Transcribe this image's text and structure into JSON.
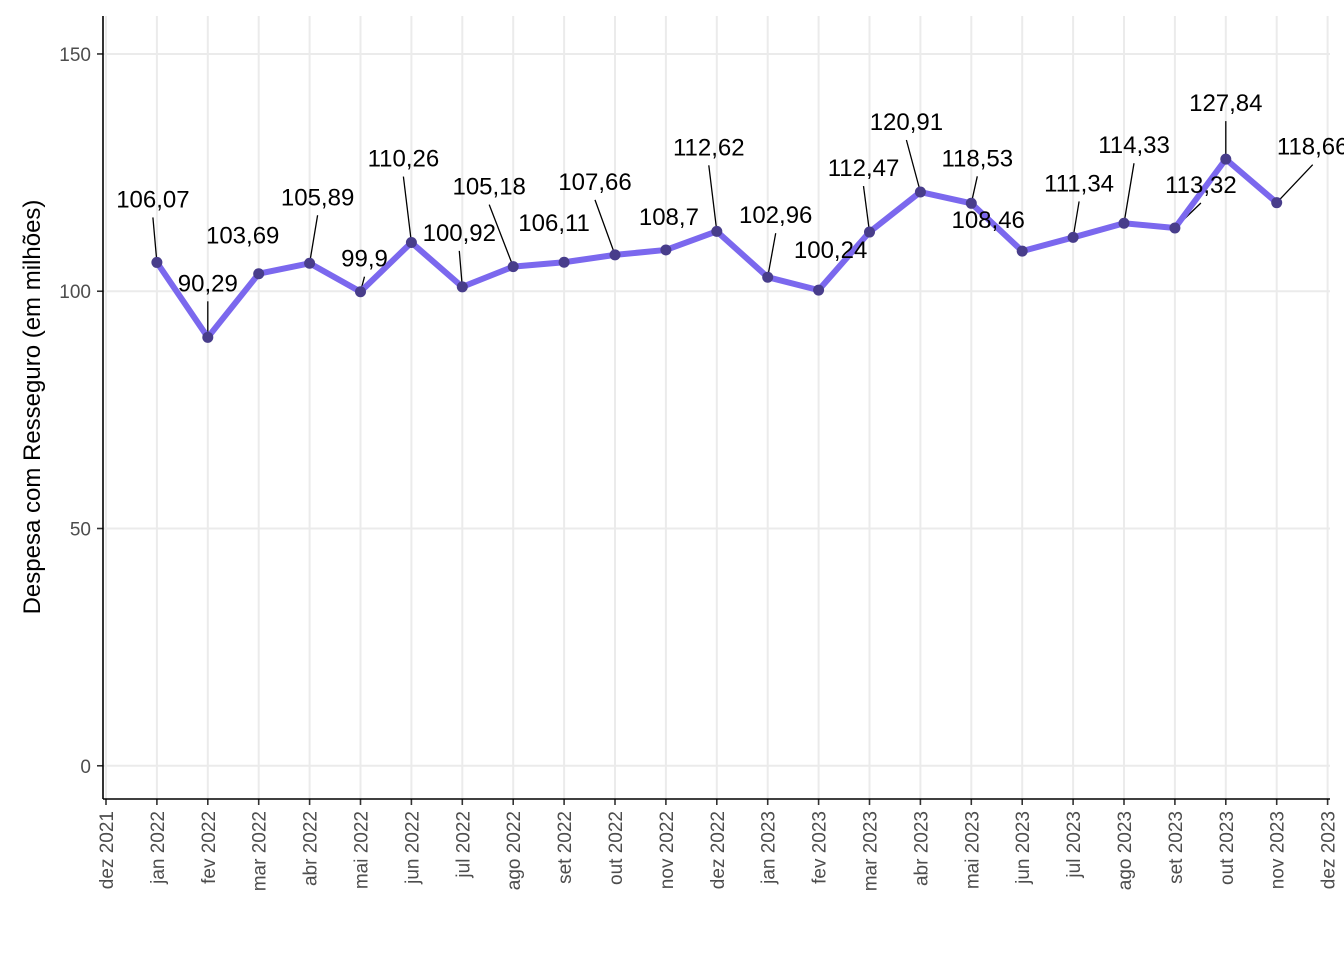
{
  "chart_data": {
    "type": "line",
    "ylabel": "Despesa com Resseguro (em milhões)",
    "xlabel": "",
    "ylim": [
      -7,
      158
    ],
    "yticks": [
      0,
      50,
      100,
      150
    ],
    "grid": true,
    "x_tick_labels": [
      "dez 2021",
      "jan 2022",
      "fev 2022",
      "mar 2022",
      "abr 2022",
      "mai 2022",
      "jun 2022",
      "jul 2022",
      "ago 2022",
      "set 2022",
      "out 2022",
      "nov 2022",
      "dez 2022",
      "jan 2023",
      "fev 2023",
      "mar 2023",
      "abr 2023",
      "mai 2023",
      "jun 2023",
      "jul 2023",
      "ago 2023",
      "set 2023",
      "out 2023",
      "nov 2023",
      "dez 2023"
    ],
    "series": [
      {
        "color": "#7b68ee",
        "point_color": "#483d8b",
        "x": [
          "jan 2022",
          "fev 2022",
          "mar 2022",
          "abr 2022",
          "mai 2022",
          "jun 2022",
          "jul 2022",
          "ago 2022",
          "set 2022",
          "out 2022",
          "nov 2022",
          "dez 2022",
          "jan 2023",
          "fev 2023",
          "mar 2023",
          "abr 2023",
          "mai 2023",
          "jun 2023",
          "jul 2023",
          "ago 2023",
          "set 2023",
          "out 2023",
          "nov 2023"
        ],
        "values": [
          106.07,
          90.29,
          103.69,
          105.89,
          99.9,
          110.26,
          100.92,
          105.18,
          106.11,
          107.66,
          108.7,
          112.62,
          102.96,
          100.24,
          112.47,
          120.91,
          118.53,
          108.46,
          111.34,
          114.33,
          113.32,
          127.84,
          118.66
        ],
        "labels": [
          "106,07",
          "90,29",
          "103,69",
          "105,89",
          "99,9",
          "110,26",
          "100,92",
          "105,18",
          "106,11",
          "107,66",
          "108,7",
          "112,62",
          "102,96",
          "100,24",
          "112,47",
          "120,91",
          "118,53",
          "108,46",
          "111,34",
          "114,33",
          "113,32",
          "127,84",
          "118,66"
        ]
      }
    ]
  }
}
